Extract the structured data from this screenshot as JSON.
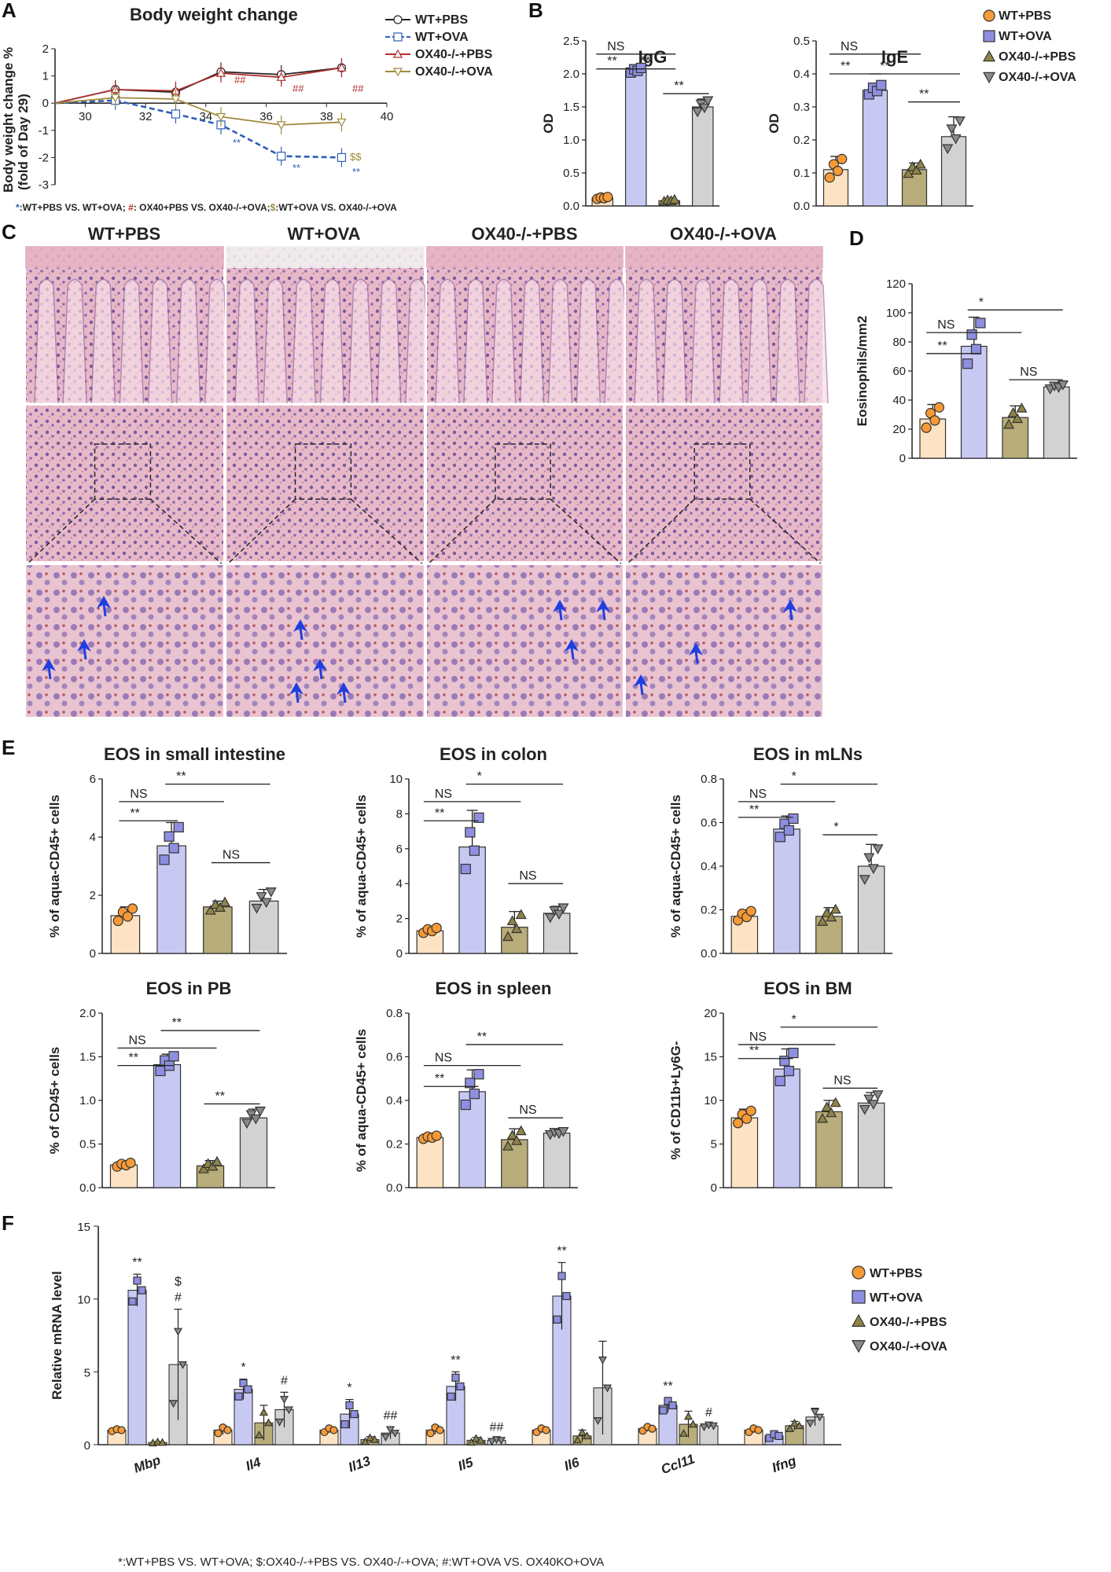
{
  "colors": {
    "wt_pbs": "#fde3c4",
    "wt_pbs_dot": "#f59a37",
    "wt_ova": "#c8c9f3",
    "wt_ova_dot": "#8e8fe0",
    "ko_pbs": "#b8ad7b",
    "ko_pbs_dot": "#8f8447",
    "ko_ova": "#d2d2d2",
    "ko_ova_dot": "#8a8a8a",
    "line_wt_pbs": "#222222",
    "line_wt_ova": "#2f5fb8",
    "line_ko_pbs": "#b03030",
    "line_ko_ova": "#a08a3a"
  },
  "panel_labels": {
    "a": "A",
    "b": "B",
    "c": "C",
    "d": "D",
    "e": "E",
    "f": "F"
  },
  "groups": [
    "WT+PBS",
    "WT+OVA",
    "OX40-/-+PBS",
    "OX40-/-+OVA"
  ],
  "panelC": {
    "columns": [
      "WT+PBS",
      "WT+OVA",
      "OX40-/-+PBS",
      "OX40-/-+OVA"
    ]
  },
  "footnote_a": {
    "star": "*",
    "star_text": ":WT+PBS VS. WT+OVA; ",
    "hash": "#",
    "hash_text": ": OX40+PBS VS. OX40-/-+OVA;",
    "dollar": "$",
    "dollar_text": ":WT+OVA VS. OX40-/-+OVA"
  },
  "footnote_f": "*:WT+PBS  VS. WT+OVA; $:OX40-/-+PBS VS. OX40-/-+OVA; #:WT+OVA VS. OX40KO+OVA",
  "chart_data": [
    {
      "id": "A",
      "type": "line",
      "title": "Body weight change",
      "ylabel": "Body weight change %\n(fold of Day 29)",
      "xlim": [
        29,
        40
      ],
      "ylim": [
        -3,
        2
      ],
      "xticks": [
        30,
        32,
        34,
        36,
        38,
        40
      ],
      "yticks": [
        -3,
        -2,
        -1,
        0,
        1,
        2
      ],
      "x": [
        29,
        31,
        33,
        34.5,
        36.5,
        38.5
      ],
      "series": [
        {
          "name": "WT+PBS",
          "values": [
            0,
            0.5,
            0.4,
            1.15,
            1.05,
            1.3
          ]
        },
        {
          "name": "WT+OVA",
          "values": [
            0,
            0.1,
            -0.4,
            -0.8,
            -1.95,
            -2.0
          ]
        },
        {
          "name": "OX40-/-+PBS",
          "values": [
            0,
            0.5,
            0.45,
            1.1,
            0.95,
            1.3
          ]
        },
        {
          "name": "OX40-/-+OVA",
          "values": [
            0,
            0.2,
            0.15,
            -0.5,
            -0.8,
            -0.7
          ]
        }
      ],
      "annotations": [
        "##",
        "##",
        "##",
        "**",
        "**",
        "**",
        "$$"
      ]
    },
    {
      "id": "B-IgG",
      "type": "bar",
      "title": "IgG",
      "ylabel": "OD",
      "ylim": [
        0,
        2.5
      ],
      "yticks": [
        "0.0",
        "0.5",
        "1.0",
        "1.5",
        "2.0",
        "2.5"
      ],
      "categories": [
        "WT+PBS",
        "WT+OVA",
        "OX40-/-+PBS",
        "OX40-/-+OVA"
      ],
      "values": [
        0.12,
        2.05,
        0.08,
        1.5
      ],
      "errors": [
        0.02,
        0.05,
        0.02,
        0.12
      ],
      "brackets": [
        "NS",
        "**",
        "**",
        "**"
      ]
    },
    {
      "id": "B-IgE",
      "type": "bar",
      "title": "IgE",
      "ylabel": "OD",
      "ylim": [
        0,
        0.5
      ],
      "yticks": [
        "0.0",
        "0.1",
        "0.2",
        "0.3",
        "0.4",
        "0.5"
      ],
      "categories": [
        "WT+PBS",
        "WT+OVA",
        "OX40-/-+PBS",
        "OX40-/-+OVA"
      ],
      "values": [
        0.11,
        0.35,
        0.11,
        0.21
      ],
      "errors": [
        0.04,
        0.02,
        0.02,
        0.06
      ],
      "brackets": [
        "NS",
        "**",
        "**",
        "**"
      ]
    },
    {
      "id": "D",
      "type": "bar",
      "title": "",
      "ylabel": "Eosinophils/mm2",
      "ylim": [
        0,
        120
      ],
      "yticks": [
        "0",
        "20",
        "40",
        "60",
        "80",
        "100",
        "120"
      ],
      "categories": [
        "WT+PBS",
        "WT+OVA",
        "OX40-/-+PBS",
        "OX40-/-+OVA"
      ],
      "values": [
        27,
        77,
        28,
        49
      ],
      "errors": [
        10,
        20,
        8,
        2
      ],
      "brackets": [
        "NS",
        "**",
        "*",
        "NS"
      ]
    },
    {
      "id": "E-si",
      "type": "bar",
      "title": "EOS in small intestine",
      "ylabel": "% of aqua-CD45+ cells",
      "ylim": [
        0,
        6
      ],
      "yticks": [
        "0",
        "2",
        "4",
        "6"
      ],
      "values": [
        1.3,
        3.7,
        1.6,
        1.8
      ],
      "errors": [
        0.3,
        0.8,
        0.2,
        0.4
      ],
      "brackets": [
        "NS",
        "**",
        "**",
        "NS"
      ]
    },
    {
      "id": "E-colon",
      "type": "bar",
      "title": "EOS in colon",
      "ylabel": "% of aqua-CD45+ cells",
      "ylim": [
        0,
        10
      ],
      "yticks": [
        "0",
        "2",
        "4",
        "6",
        "8",
        "10"
      ],
      "values": [
        1.3,
        6.1,
        1.5,
        2.3
      ],
      "errors": [
        0.2,
        2.1,
        0.9,
        0.4
      ],
      "brackets": [
        "NS",
        "**",
        "*",
        "NS"
      ]
    },
    {
      "id": "E-mln",
      "type": "bar",
      "title": "EOS in mLNs",
      "ylabel": "% of aqua-CD45+ cells",
      "ylim": [
        0,
        0.8
      ],
      "yticks": [
        "0.0",
        "0.2",
        "0.4",
        "0.6",
        "0.8"
      ],
      "values": [
        0.17,
        0.57,
        0.17,
        0.4
      ],
      "errors": [
        0.03,
        0.06,
        0.04,
        0.1
      ],
      "brackets": [
        "NS",
        "**",
        "*",
        "*"
      ]
    },
    {
      "id": "E-pb",
      "type": "bar",
      "title": "EOS in PB",
      "ylabel": "% of CD45+ cells",
      "ylim": [
        0,
        2.0
      ],
      "yticks": [
        "0.0",
        "0.5",
        "1.0",
        "1.5",
        "2.0"
      ],
      "values": [
        0.26,
        1.41,
        0.25,
        0.8
      ],
      "errors": [
        0.03,
        0.12,
        0.06,
        0.1
      ],
      "brackets": [
        "NS",
        "**",
        "**",
        "**"
      ]
    },
    {
      "id": "E-spleen",
      "type": "bar",
      "title": "EOS in spleen",
      "ylabel": "% of aqua-CD45+ cells",
      "ylim": [
        0,
        0.8
      ],
      "yticks": [
        "0.0",
        "0.2",
        "0.4",
        "0.6",
        "0.8"
      ],
      "values": [
        0.23,
        0.44,
        0.22,
        0.25
      ],
      "errors": [
        0.01,
        0.1,
        0.05,
        0.01
      ],
      "brackets": [
        "NS",
        "**",
        "**",
        "NS"
      ]
    },
    {
      "id": "E-bm",
      "type": "bar",
      "title": "EOS in BM",
      "ylabel": "% of CD11b+Ly6G-",
      "ylim": [
        0,
        20
      ],
      "yticks": [
        "0",
        "5",
        "10",
        "15",
        "20"
      ],
      "values": [
        8,
        13.6,
        8.7,
        9.7
      ],
      "errors": [
        1,
        2.3,
        1.3,
        1.2
      ],
      "brackets": [
        "NS",
        "**",
        "*",
        "NS"
      ]
    },
    {
      "id": "F",
      "type": "bar",
      "title": "",
      "ylabel": "Relative mRNA  level",
      "ylim": [
        0,
        15
      ],
      "yticks": [
        "0",
        "5",
        "10",
        "15"
      ],
      "categories": [
        "Mbp",
        "Il4",
        "Il13",
        "Il5",
        "Il6",
        "Ccl11",
        "Ifng"
      ],
      "series": [
        {
          "name": "WT+PBS",
          "values": [
            1.0,
            1.0,
            1.0,
            1.0,
            1.0,
            1.1,
            1.0
          ],
          "errors": [
            0.1,
            0.3,
            0.2,
            0.3,
            0.2,
            0.2,
            0.2
          ]
        },
        {
          "name": "WT+OVA",
          "values": [
            10.6,
            3.8,
            2.1,
            4.0,
            10.2,
            2.7,
            0.6
          ],
          "errors": [
            1.1,
            0.7,
            1.0,
            1.0,
            2.3,
            0.5,
            0.2
          ]
        },
        {
          "name": "OX40-/-+PBS",
          "values": [
            0.15,
            1.5,
            0.35,
            0.3,
            0.6,
            1.4,
            1.3
          ],
          "errors": [
            0.05,
            1.2,
            0.2,
            0.2,
            0.4,
            0.9,
            0.3
          ]
        },
        {
          "name": "OX40-/-+OVA",
          "values": [
            5.5,
            2.4,
            0.8,
            0.3,
            3.9,
            1.3,
            1.9
          ],
          "errors": [
            3.8,
            1.2,
            0.4,
            0.1,
            3.2,
            0.1,
            0.6
          ]
        }
      ],
      "annotations": [
        {
          "cat": 0,
          "labels": [
            "**"
          ],
          "series": 1
        },
        {
          "cat": 0,
          "labels": [
            "$",
            "#"
          ],
          "series": 3
        },
        {
          "cat": 1,
          "labels": [
            "*"
          ],
          "series": 1
        },
        {
          "cat": 1,
          "labels": [
            "#"
          ],
          "series": 3
        },
        {
          "cat": 2,
          "labels": [
            "*"
          ],
          "series": 1
        },
        {
          "cat": 2,
          "labels": [
            "##"
          ],
          "series": 3
        },
        {
          "cat": 3,
          "labels": [
            "**"
          ],
          "series": 1
        },
        {
          "cat": 3,
          "labels": [
            "##"
          ],
          "series": 3
        },
        {
          "cat": 4,
          "labels": [
            "**"
          ],
          "series": 1
        },
        {
          "cat": 5,
          "labels": [
            "**"
          ],
          "series": 1
        },
        {
          "cat": 5,
          "labels": [
            "#"
          ],
          "series": 3
        }
      ]
    }
  ]
}
